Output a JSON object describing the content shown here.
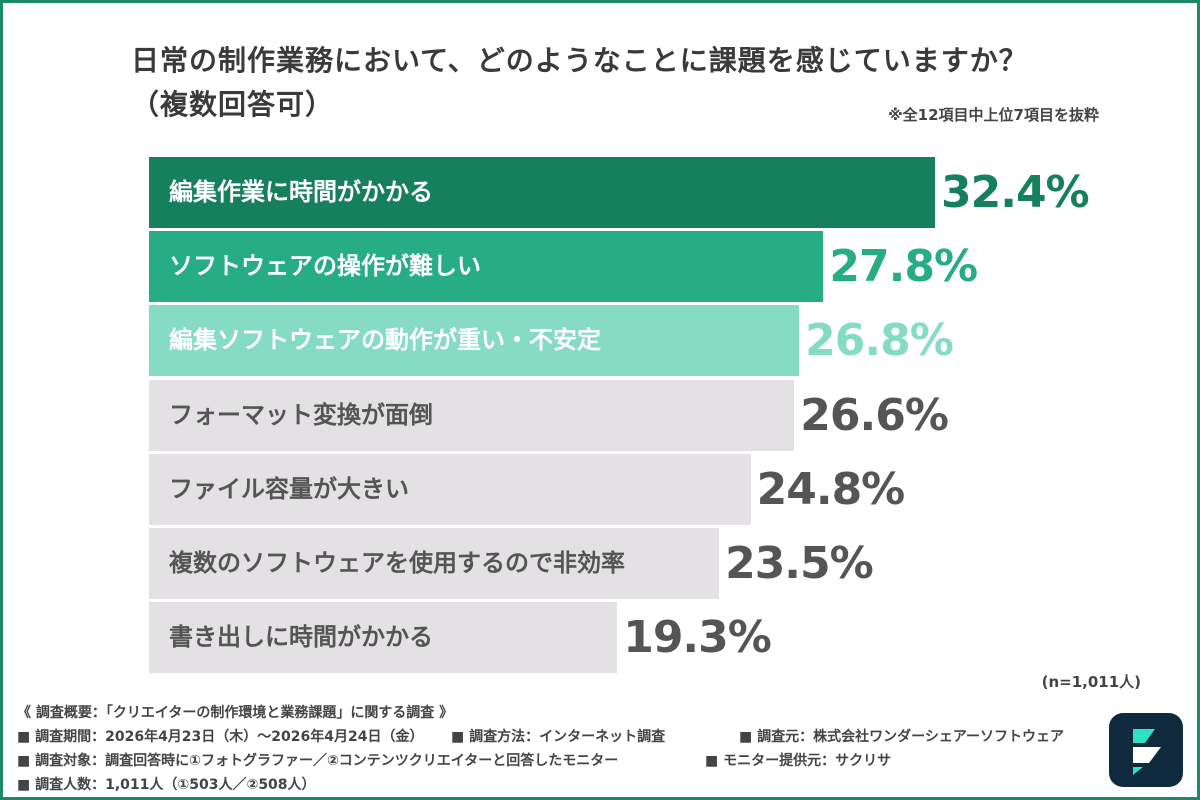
{
  "title_line1": "日常の制作業務において、どのようなことに課題を感じていますか？",
  "title_line2": "（複数回答可）",
  "note": "※全12項目中上位7項目を抜粋",
  "sample_note": "(n=1,011人)",
  "colors": {
    "bar_1": "#167f5c",
    "bar_2": "#26ad84",
    "bar_3": "#86dcc2",
    "bar_other": "#e3e1e3",
    "value_1": "#167f5c",
    "value_2": "#26ad84",
    "value_3": "#86dcc2",
    "value_other": "#555555",
    "frame": "#1e8a66",
    "logo_bg": "#0f2a3c",
    "logo_mark": "#2de0c6"
  },
  "chart_data": {
    "type": "bar",
    "orientation": "horizontal",
    "categories": [
      "編集作業に時間がかかる",
      "ソフトウェアの操作が難しい",
      "編集ソフトウェアの動作が重い・不安定",
      "フォーマット変換が面倒",
      "ファイル容量が大きい",
      "複数のソフトウェアを使用するので非効率",
      "書き出しに時間がかかる"
    ],
    "values": [
      32.4,
      27.8,
      26.8,
      26.6,
      24.8,
      23.5,
      19.3
    ],
    "value_labels": [
      "32.4%",
      "27.8%",
      "26.8%",
      "26.6%",
      "24.8%",
      "23.5%",
      "19.3%"
    ],
    "unit": "%",
    "title": "日常の制作業務において、どのようなことに課題を感じていますか？（複数回答可）",
    "grid": false,
    "legend": "none"
  },
  "footer": {
    "survey_summary": "《 調査概要：「クリエイターの制作環境と業務課題」に関する調査 》",
    "period": "■ 調査期間：2026年4月23日（木）～2026年4月24日（金）",
    "method": "■ 調査方法：インターネット調査",
    "organizer": "■ 調査元：株式会社ワンダーシェアーソフトウェア",
    "target": "■ 調査対象：調査回答時に①フォトグラファー／②コンテンツクリエイターと回答したモニター",
    "provider": "■ モニター提供元：サクリサ",
    "respondents": "■ 調査人数：1,011人（①503人／②508人）"
  },
  "logo_icon": "filmora-logo-icon"
}
